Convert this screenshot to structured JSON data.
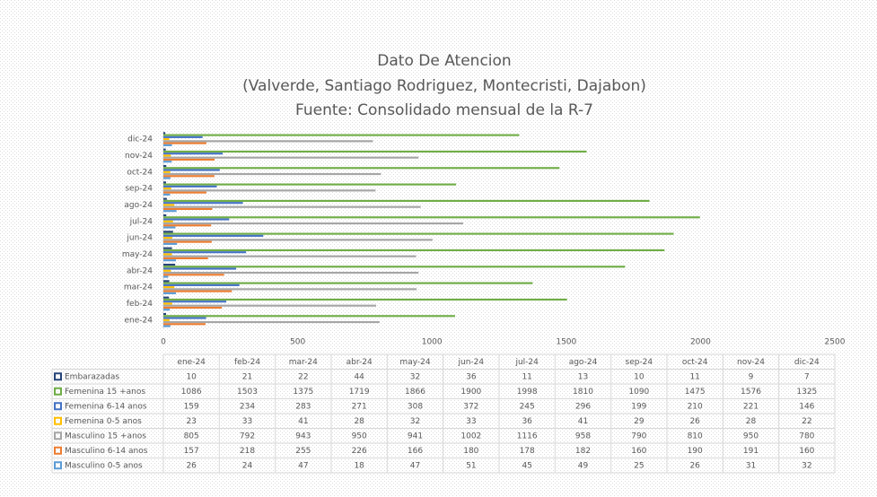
{
  "chart_data": {
    "type": "bar",
    "orientation": "horizontal",
    "title": "Dato De Atencion",
    "subtitle": "(Valverde, Santiago Rodriguez, Montecristi, Dajabon)",
    "source": "Fuente: Consolidado mensual de la R-7",
    "categories": [
      "ene-24",
      "feb-24",
      "mar-24",
      "abr-24",
      "may-24",
      "jun-24",
      "jul-24",
      "ago-24",
      "sep-24",
      "oct-24",
      "nov-24",
      "dic-24"
    ],
    "series": [
      {
        "name": "Embarazadas",
        "color": "#264478",
        "values": [
          10,
          21,
          22,
          44,
          32,
          36,
          11,
          13,
          10,
          11,
          9,
          7
        ]
      },
      {
        "name": "Femenina 15 +anos",
        "color": "#70ad47",
        "values": [
          1086,
          1503,
          1375,
          1719,
          1866,
          1900,
          1998,
          1810,
          1090,
          1475,
          1576,
          1325
        ]
      },
      {
        "name": "Femenina 6-14 anos",
        "color": "#4472c4",
        "values": [
          159,
          234,
          283,
          271,
          308,
          372,
          245,
          296,
          199,
          210,
          221,
          146
        ]
      },
      {
        "name": "Femenina 0-5 anos",
        "color": "#ffc000",
        "values": [
          23,
          33,
          41,
          28,
          32,
          33,
          36,
          41,
          29,
          26,
          28,
          22
        ]
      },
      {
        "name": "Masculino 15 +anos",
        "color": "#a5a5a5",
        "values": [
          805,
          792,
          943,
          950,
          941,
          1002,
          1116,
          958,
          790,
          810,
          950,
          780
        ]
      },
      {
        "name": "Masculino 6-14 anos",
        "color": "#ed7d31",
        "values": [
          157,
          218,
          255,
          226,
          166,
          180,
          178,
          182,
          160,
          190,
          191,
          160
        ]
      },
      {
        "name": "Masculino 0-5 anos",
        "color": "#5b9bd5",
        "values": [
          26,
          24,
          47,
          18,
          47,
          51,
          45,
          49,
          25,
          26,
          31,
          32
        ]
      }
    ],
    "xlim": [
      0,
      2500
    ],
    "xticks": [
      0,
      500,
      1000,
      1500,
      2000,
      2500
    ],
    "grid": false,
    "data_table": true
  }
}
